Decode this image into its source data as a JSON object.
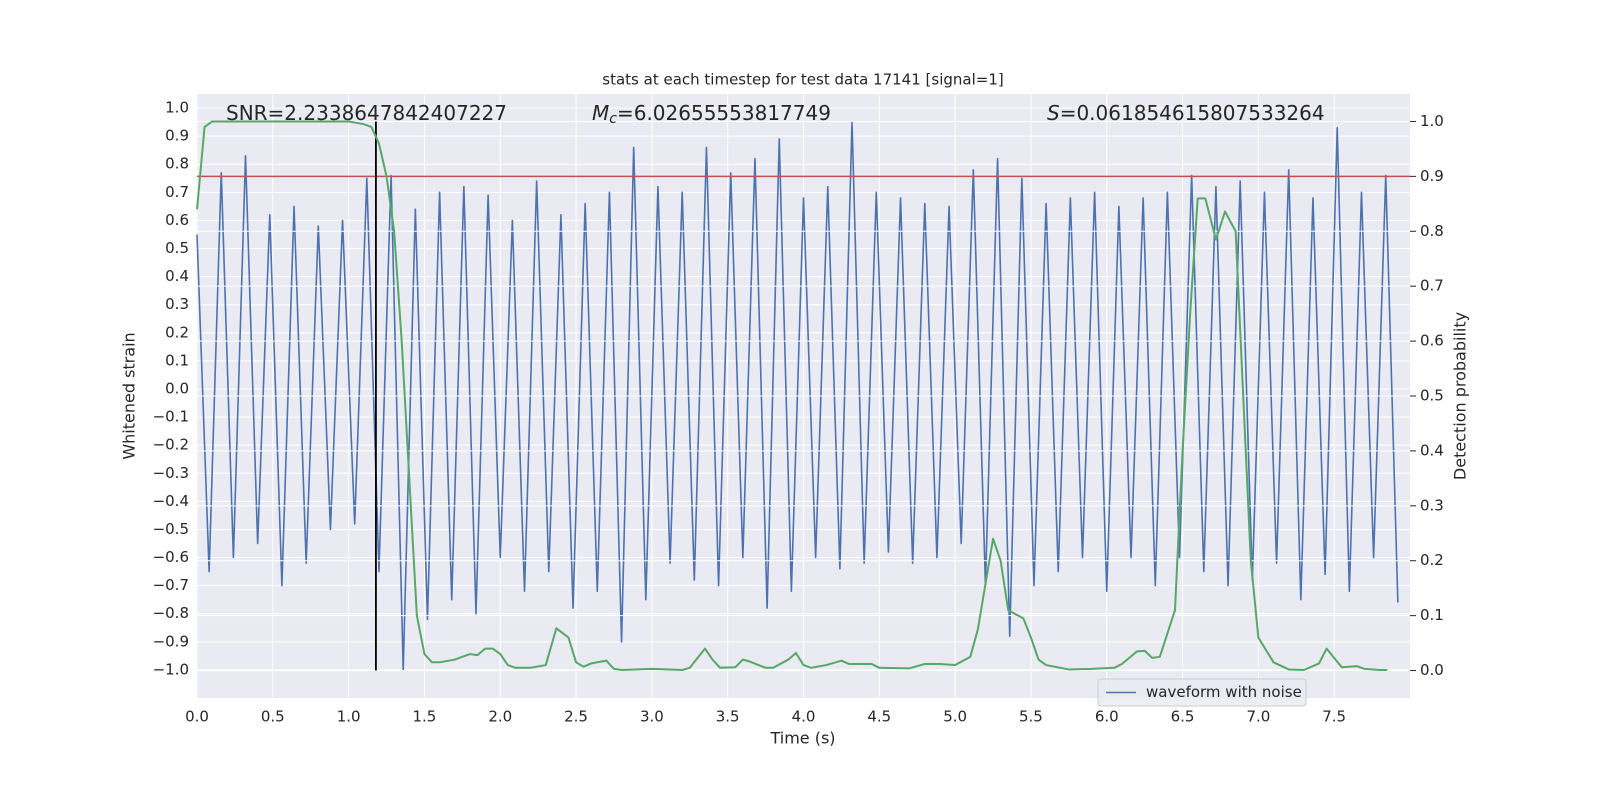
{
  "chart_data": {
    "type": "line",
    "title": "stats at each timestep for test data 17141 [signal=1]",
    "xlabel": "Time (s)",
    "ylabel": "Whitened strain",
    "y2label": "Detection probability",
    "xlim": [
      0,
      8
    ],
    "ylim": [
      -1.1,
      1.05
    ],
    "y2lim": [
      -0.05,
      1.05
    ],
    "xticks": [
      {
        "value": 0,
        "label": "0.0"
      },
      0.5,
      {
        "value": 1,
        "label": "1.0"
      },
      1.5,
      {
        "value": 2,
        "label": "2.0"
      },
      2.5,
      {
        "value": 3,
        "label": "3.0"
      },
      3.5,
      {
        "value": 4,
        "label": "4.0"
      },
      4.5,
      {
        "value": 5,
        "label": "5.0"
      },
      5.5,
      {
        "value": 6,
        "label": "6.0"
      },
      6.5,
      {
        "value": 7,
        "label": "7.0"
      },
      7.5
    ],
    "yticks": [
      {
        "value": -1,
        "label": "−1.0"
      },
      {
        "value": -0.9,
        "label": "−0.9"
      },
      {
        "value": -0.8,
        "label": "−0.8"
      },
      {
        "value": -0.7,
        "label": "−0.7"
      },
      {
        "value": -0.6,
        "label": "−0.6"
      },
      {
        "value": -0.5,
        "label": "−0.5"
      },
      {
        "value": -0.4,
        "label": "−0.4"
      },
      {
        "value": -0.3,
        "label": "−0.3"
      },
      {
        "value": -0.2,
        "label": "−0.2"
      },
      {
        "value": -0.1,
        "label": "−0.1"
      },
      {
        "value": 0,
        "label": "0.0"
      },
      0.1,
      0.2,
      0.3,
      0.4,
      0.5,
      0.6,
      0.7,
      0.8,
      0.9,
      {
        "value": 1,
        "label": "1.0"
      }
    ],
    "y2ticks": [
      {
        "value": 0,
        "label": "0.0"
      },
      0.1,
      0.2,
      0.3,
      0.4,
      0.5,
      0.6,
      0.7,
      0.8,
      0.9,
      {
        "value": 1,
        "label": "1.0"
      }
    ],
    "grid": true,
    "legend": "lower right",
    "annotations": [
      {
        "text": "SNR=2.2338647842407227"
      },
      {
        "symbol": "M",
        "subscript": "c",
        "text": "=6.02655553817749"
      },
      {
        "symbol": "S",
        "text": "=0.061854615807533264"
      }
    ],
    "series": [
      {
        "name": "waveform with noise",
        "color": "#4c72b0",
        "x": [
          0,
          0.08,
          0.16,
          0.24,
          0.32,
          0.4,
          0.48,
          0.56,
          0.64,
          0.72,
          0.8,
          0.88,
          0.96,
          1.04,
          1.12,
          1.2,
          1.28,
          1.36,
          1.44,
          1.52,
          1.6,
          1.68,
          1.76,
          1.84,
          1.92,
          2.0,
          2.08,
          2.16,
          2.24,
          2.32,
          2.4,
          2.48,
          2.56,
          2.64,
          2.72,
          2.8,
          2.88,
          2.96,
          3.04,
          3.12,
          3.2,
          3.28,
          3.36,
          3.44,
          3.52,
          3.6,
          3.68,
          3.76,
          3.84,
          3.92,
          4.0,
          4.08,
          4.16,
          4.24,
          4.32,
          4.4,
          4.48,
          4.56,
          4.64,
          4.72,
          4.8,
          4.88,
          4.96,
          5.04,
          5.12,
          5.2,
          5.28,
          5.36,
          5.44,
          5.52,
          5.6,
          5.68,
          5.76,
          5.84,
          5.92,
          6.0,
          6.08,
          6.16,
          6.24,
          6.32,
          6.4,
          6.48,
          6.56,
          6.64,
          6.72,
          6.8,
          6.88,
          6.96,
          7.04,
          7.12,
          7.2,
          7.28,
          7.36,
          7.44,
          7.52,
          7.6,
          7.68,
          7.76,
          7.84,
          7.92
        ],
        "values": [
          0.55,
          -0.65,
          0.77,
          -0.6,
          0.83,
          -0.55,
          0.62,
          -0.7,
          0.65,
          -0.62,
          0.58,
          -0.5,
          0.6,
          -0.48,
          0.75,
          -0.65,
          0.76,
          -1.0,
          0.64,
          -0.82,
          0.7,
          -0.75,
          0.72,
          -0.8,
          0.69,
          -0.6,
          0.6,
          -0.72,
          0.74,
          -0.65,
          0.62,
          -0.78,
          0.66,
          -0.72,
          0.7,
          -0.9,
          0.86,
          -0.75,
          0.72,
          -0.62,
          0.7,
          -0.68,
          0.86,
          -0.7,
          0.77,
          -0.6,
          0.82,
          -0.78,
          0.89,
          -0.72,
          0.68,
          -0.6,
          0.72,
          -0.64,
          0.95,
          -0.62,
          0.7,
          -0.58,
          0.68,
          -0.62,
          0.66,
          -0.6,
          0.65,
          -0.55,
          0.78,
          -0.7,
          0.82,
          -0.88,
          0.75,
          -0.7,
          0.66,
          -0.65,
          0.68,
          -0.6,
          0.7,
          -0.72,
          0.65,
          -0.6,
          0.68,
          -0.7,
          0.7,
          -0.6,
          0.76,
          -0.65,
          0.72,
          -0.7,
          0.74,
          -0.68,
          0.7,
          -0.62,
          0.78,
          -0.75,
          0.68,
          -0.66,
          0.93,
          -0.72,
          0.7,
          -0.6,
          0.76,
          -0.76
        ]
      }
    ],
    "probability": {
      "color": "#55a868",
      "axis": "y2",
      "x": [
        0,
        0.05,
        0.1,
        0.5,
        1.0,
        1.1,
        1.15,
        1.2,
        1.25,
        1.3,
        1.35,
        1.4,
        1.45,
        1.5,
        1.55,
        1.6,
        1.7,
        1.8,
        1.85,
        1.9,
        1.95,
        2.0,
        2.05,
        2.1,
        2.2,
        2.3,
        2.37,
        2.45,
        2.5,
        2.55,
        2.6,
        2.7,
        2.75,
        2.8,
        3.0,
        3.2,
        3.25,
        3.35,
        3.4,
        3.45,
        3.55,
        3.6,
        3.65,
        3.75,
        3.8,
        3.9,
        3.95,
        4.0,
        4.05,
        4.15,
        4.25,
        4.3,
        4.45,
        4.5,
        4.7,
        4.8,
        4.9,
        5.0,
        5.1,
        5.15,
        5.25,
        5.3,
        5.35,
        5.45,
        5.5,
        5.55,
        5.6,
        5.75,
        5.9,
        6.05,
        6.1,
        6.2,
        6.25,
        6.3,
        6.35,
        6.45,
        6.5,
        6.55,
        6.6,
        6.65,
        6.72,
        6.78,
        6.85,
        6.9,
        6.95,
        7.0,
        7.1,
        7.2,
        7.3,
        7.4,
        7.45,
        7.55,
        7.65,
        7.7,
        7.8,
        7.85
      ],
      "values": [
        0.84,
        0.99,
        1.0,
        1.0,
        1.0,
        0.995,
        0.99,
        0.96,
        0.9,
        0.8,
        0.6,
        0.35,
        0.1,
        0.03,
        0.015,
        0.015,
        0.02,
        0.03,
        0.028,
        0.04,
        0.04,
        0.03,
        0.01,
        0.005,
        0.005,
        0.01,
        0.077,
        0.06,
        0.015,
        0.007,
        0.013,
        0.018,
        0.003,
        0.001,
        0.003,
        0.001,
        0.005,
        0.04,
        0.02,
        0.005,
        0.006,
        0.02,
        0.016,
        0.005,
        0.005,
        0.02,
        0.032,
        0.01,
        0.005,
        0.01,
        0.018,
        0.012,
        0.012,
        0.005,
        0.004,
        0.012,
        0.012,
        0.01,
        0.025,
        0.075,
        0.24,
        0.2,
        0.11,
        0.095,
        0.06,
        0.02,
        0.01,
        0.002,
        0.003,
        0.005,
        0.012,
        0.035,
        0.036,
        0.023,
        0.025,
        0.11,
        0.4,
        0.65,
        0.86,
        0.86,
        0.785,
        0.836,
        0.8,
        0.5,
        0.2,
        0.06,
        0.015,
        0.002,
        0.001,
        0.013,
        0.04,
        0.006,
        0.008,
        0.003,
        0.001,
        0.001
      ]
    },
    "hline": {
      "y2": 0.9,
      "color": "#c44e52"
    },
    "vline": {
      "x": 1.18,
      "y2": [
        0,
        1
      ],
      "color": "#000000"
    }
  }
}
